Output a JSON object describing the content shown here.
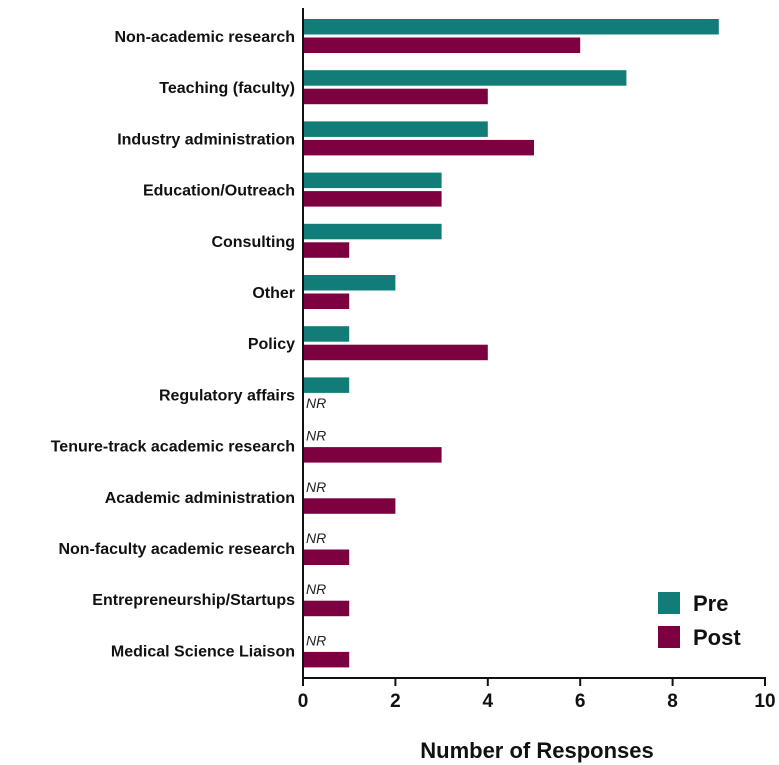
{
  "chart_data": {
    "type": "bar",
    "orientation": "horizontal",
    "categories": [
      "Non-academic research",
      "Teaching (faculty)",
      "Industry administration",
      "Education/Outreach",
      "Consulting",
      "Other",
      "Policy",
      "Regulatory affairs",
      "Tenure-track academic research",
      "Academic administration",
      "Non-faculty academic research",
      "Entrepreneurship/Startups",
      "Medical Science Liaison"
    ],
    "series": [
      {
        "name": "Pre",
        "color": "#127d78",
        "values": [
          9,
          7,
          4,
          3,
          3,
          2,
          1,
          1,
          null,
          null,
          null,
          null,
          null
        ]
      },
      {
        "name": "Post",
        "color": "#7d0040",
        "values": [
          6,
          4,
          5,
          3,
          1,
          1,
          4,
          null,
          3,
          2,
          1,
          1,
          1
        ]
      }
    ],
    "missing_label": "NR",
    "xlabel": "Number of Responses",
    "ylabel": "",
    "xlim": [
      0,
      10
    ],
    "xticks": [
      "0",
      "2",
      "4",
      "6",
      "8",
      "10"
    ],
    "grid": false,
    "legend_position": "bottom-right"
  }
}
